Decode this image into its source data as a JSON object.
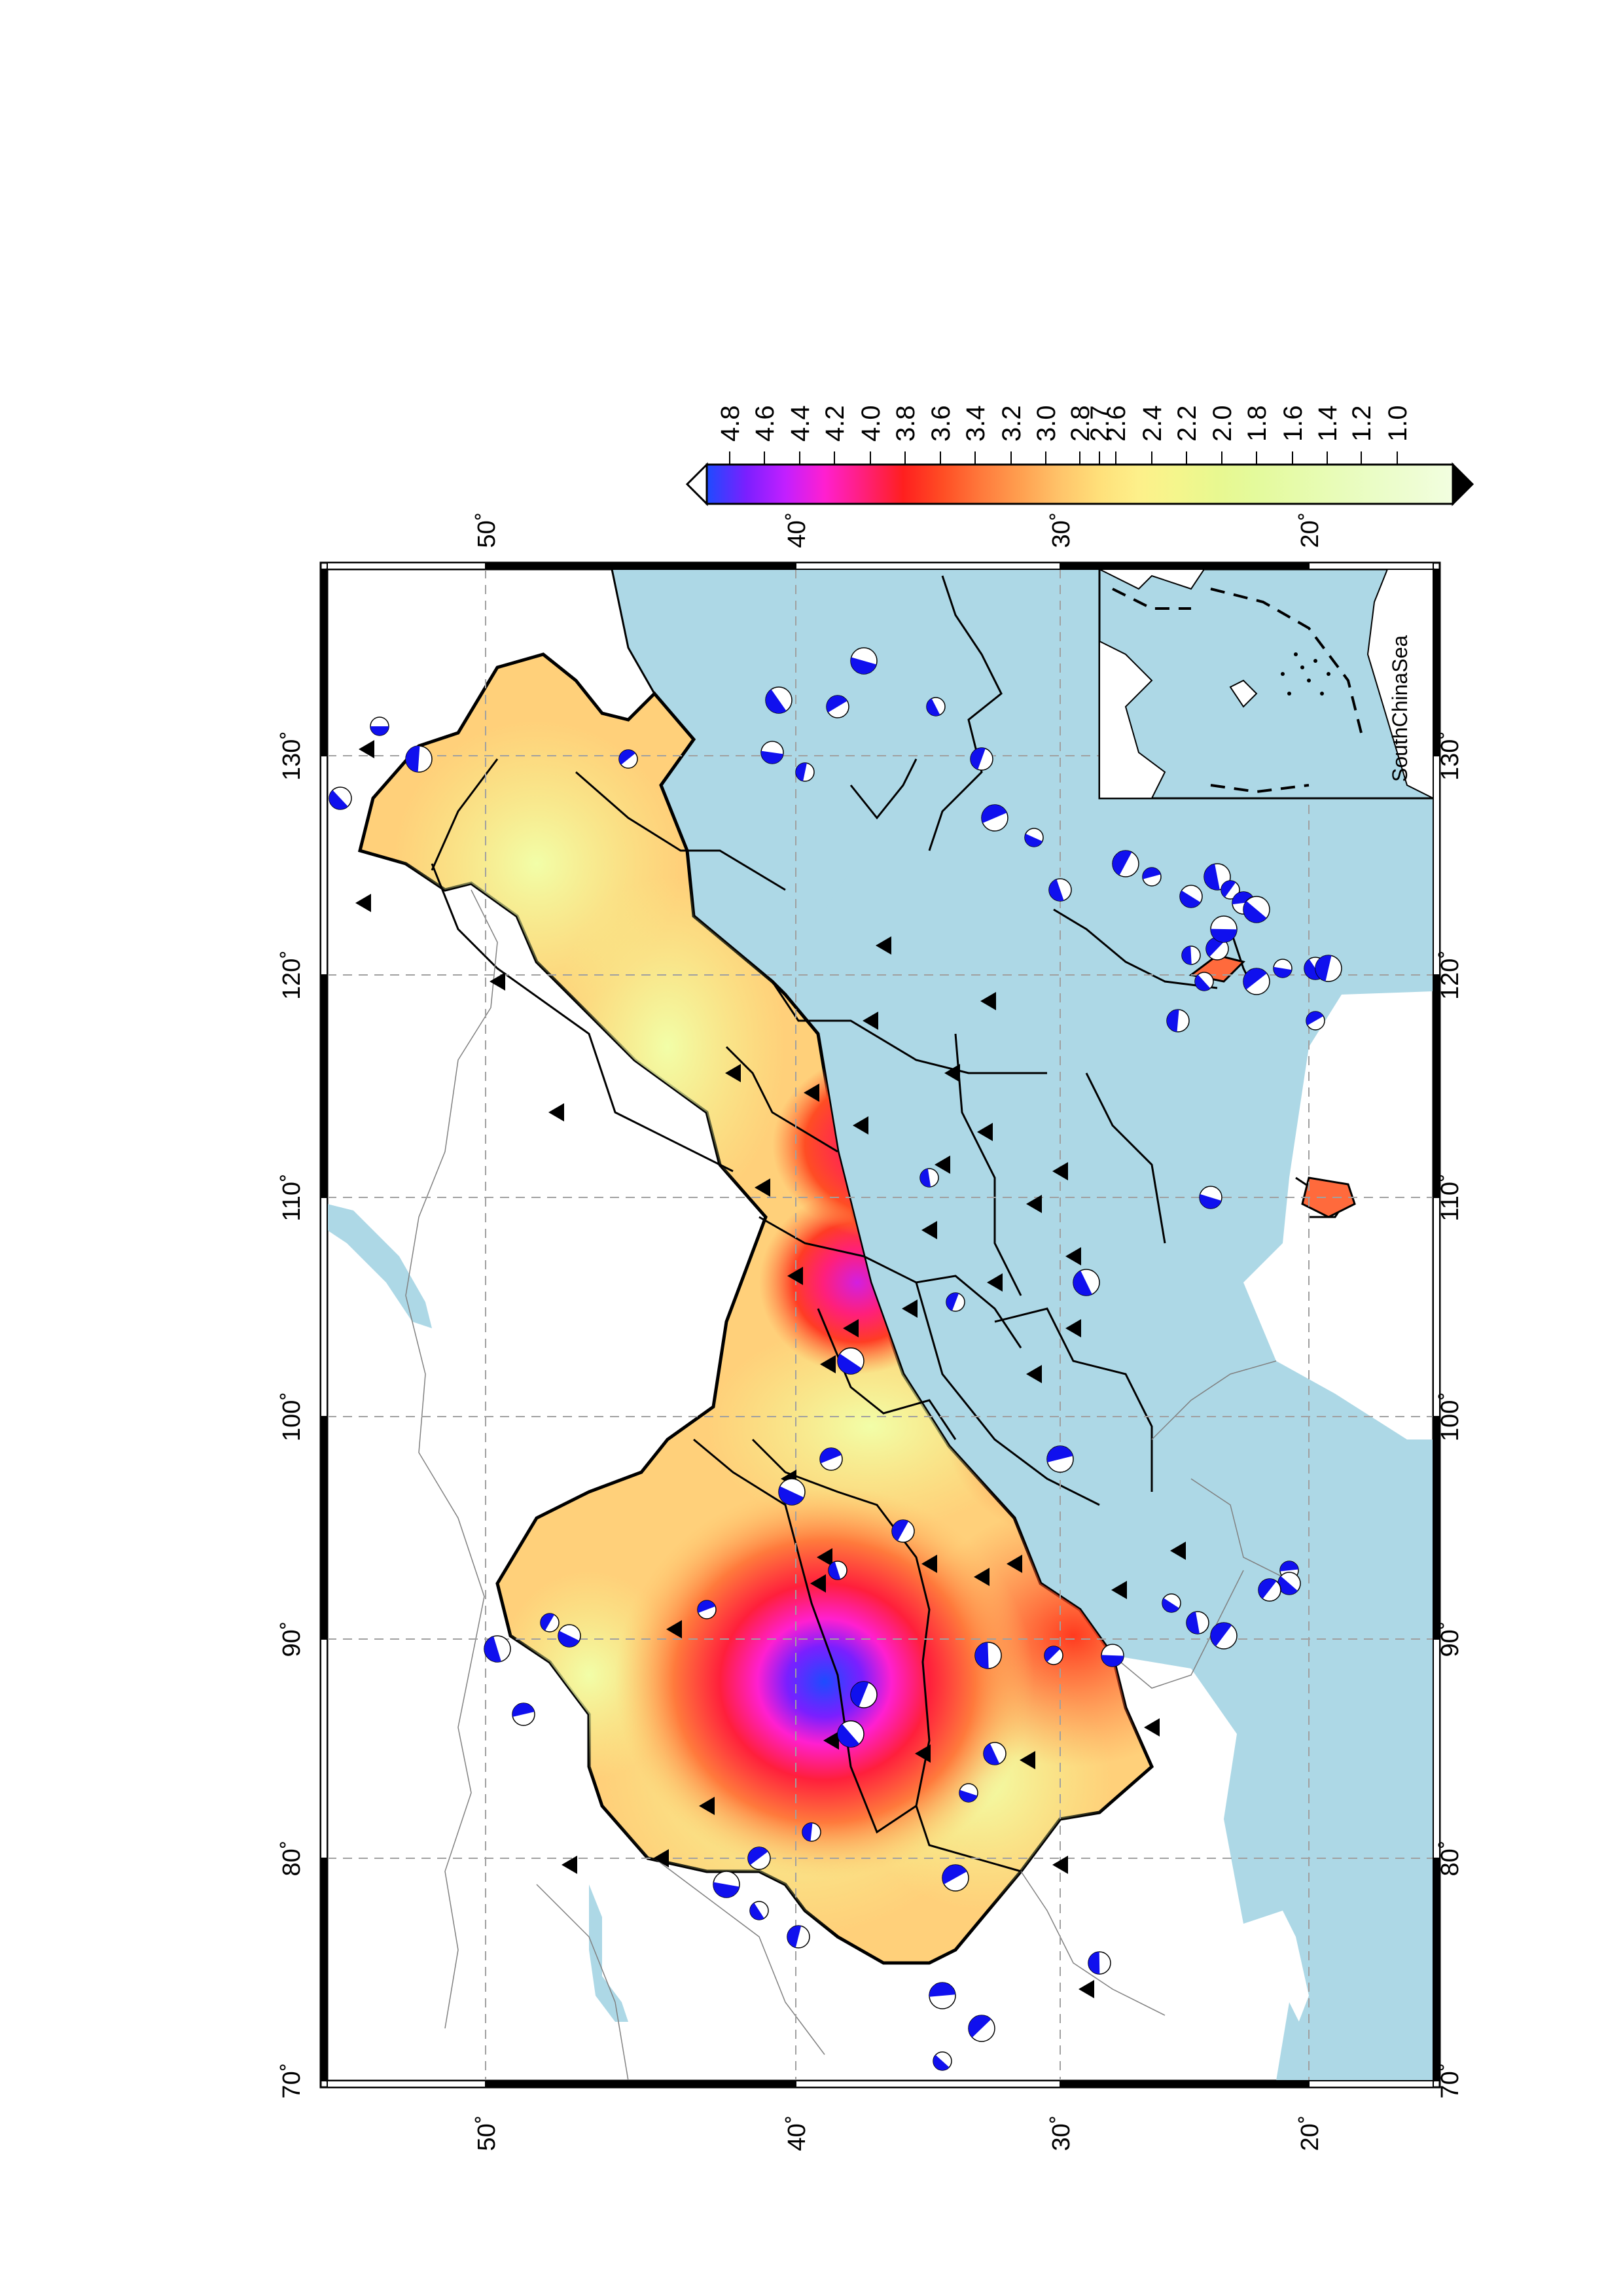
{
  "map": {
    "orientation": "rotated 90 degrees counter-clockwise",
    "longitude_ticks": [
      "70˚",
      "80˚",
      "90˚",
      "100˚",
      "110˚",
      "120˚",
      "130˚"
    ],
    "latitude_ticks": [
      "20˚",
      "30˚",
      "40˚",
      "50˚"
    ],
    "inset_label": "SouthChinaSea",
    "colors": {
      "ocean": "#add8e6",
      "land": "#ffffff",
      "grid": "#a0a0a0",
      "station_marker": "#000000",
      "focal_mechanism": "#1010ee"
    },
    "icons": {
      "station": "black-triangle",
      "earthquake": "beach-ball-focal-mechanism"
    }
  },
  "colorbar": {
    "ticks": [
      "4.8",
      "4.6",
      "4.4",
      "4.2",
      "4.0",
      "3.8",
      "3.6",
      "3.4",
      "3.2",
      "3.0",
      "2.8",
      "2.7",
      "2.6",
      "2.4",
      "2.2",
      "2.0",
      "1.8",
      "1.6",
      "1.4",
      "1.2",
      "1.0"
    ],
    "stops": [
      {
        "value": 4.8,
        "color": "#1e4bff"
      },
      {
        "value": 4.6,
        "color": "#7a1fff"
      },
      {
        "value": 4.4,
        "color": "#c21fff"
      },
      {
        "value": 4.2,
        "color": "#ff1fd0"
      },
      {
        "value": 4.0,
        "color": "#ff1f7a"
      },
      {
        "value": 3.8,
        "color": "#ff1f1f"
      },
      {
        "value": 3.6,
        "color": "#ff4d24"
      },
      {
        "value": 3.4,
        "color": "#ff7a3c"
      },
      {
        "value": 3.2,
        "color": "#ffa050"
      },
      {
        "value": 3.0,
        "color": "#ffc46a"
      },
      {
        "value": 2.8,
        "color": "#ffe07a"
      },
      {
        "value": 2.6,
        "color": "#fdf08a"
      },
      {
        "value": 2.4,
        "color": "#f4f68c"
      },
      {
        "value": 2.2,
        "color": "#e8f890"
      },
      {
        "value": 2.0,
        "color": "#e4fa9c"
      },
      {
        "value": 1.8,
        "color": "#e6fbaa"
      },
      {
        "value": 1.6,
        "color": "#e8fcb8"
      },
      {
        "value": 1.4,
        "color": "#eafdc6"
      },
      {
        "value": 1.2,
        "color": "#eefdd2"
      },
      {
        "value": 1.0,
        "color": "#f2fee0"
      }
    ]
  }
}
